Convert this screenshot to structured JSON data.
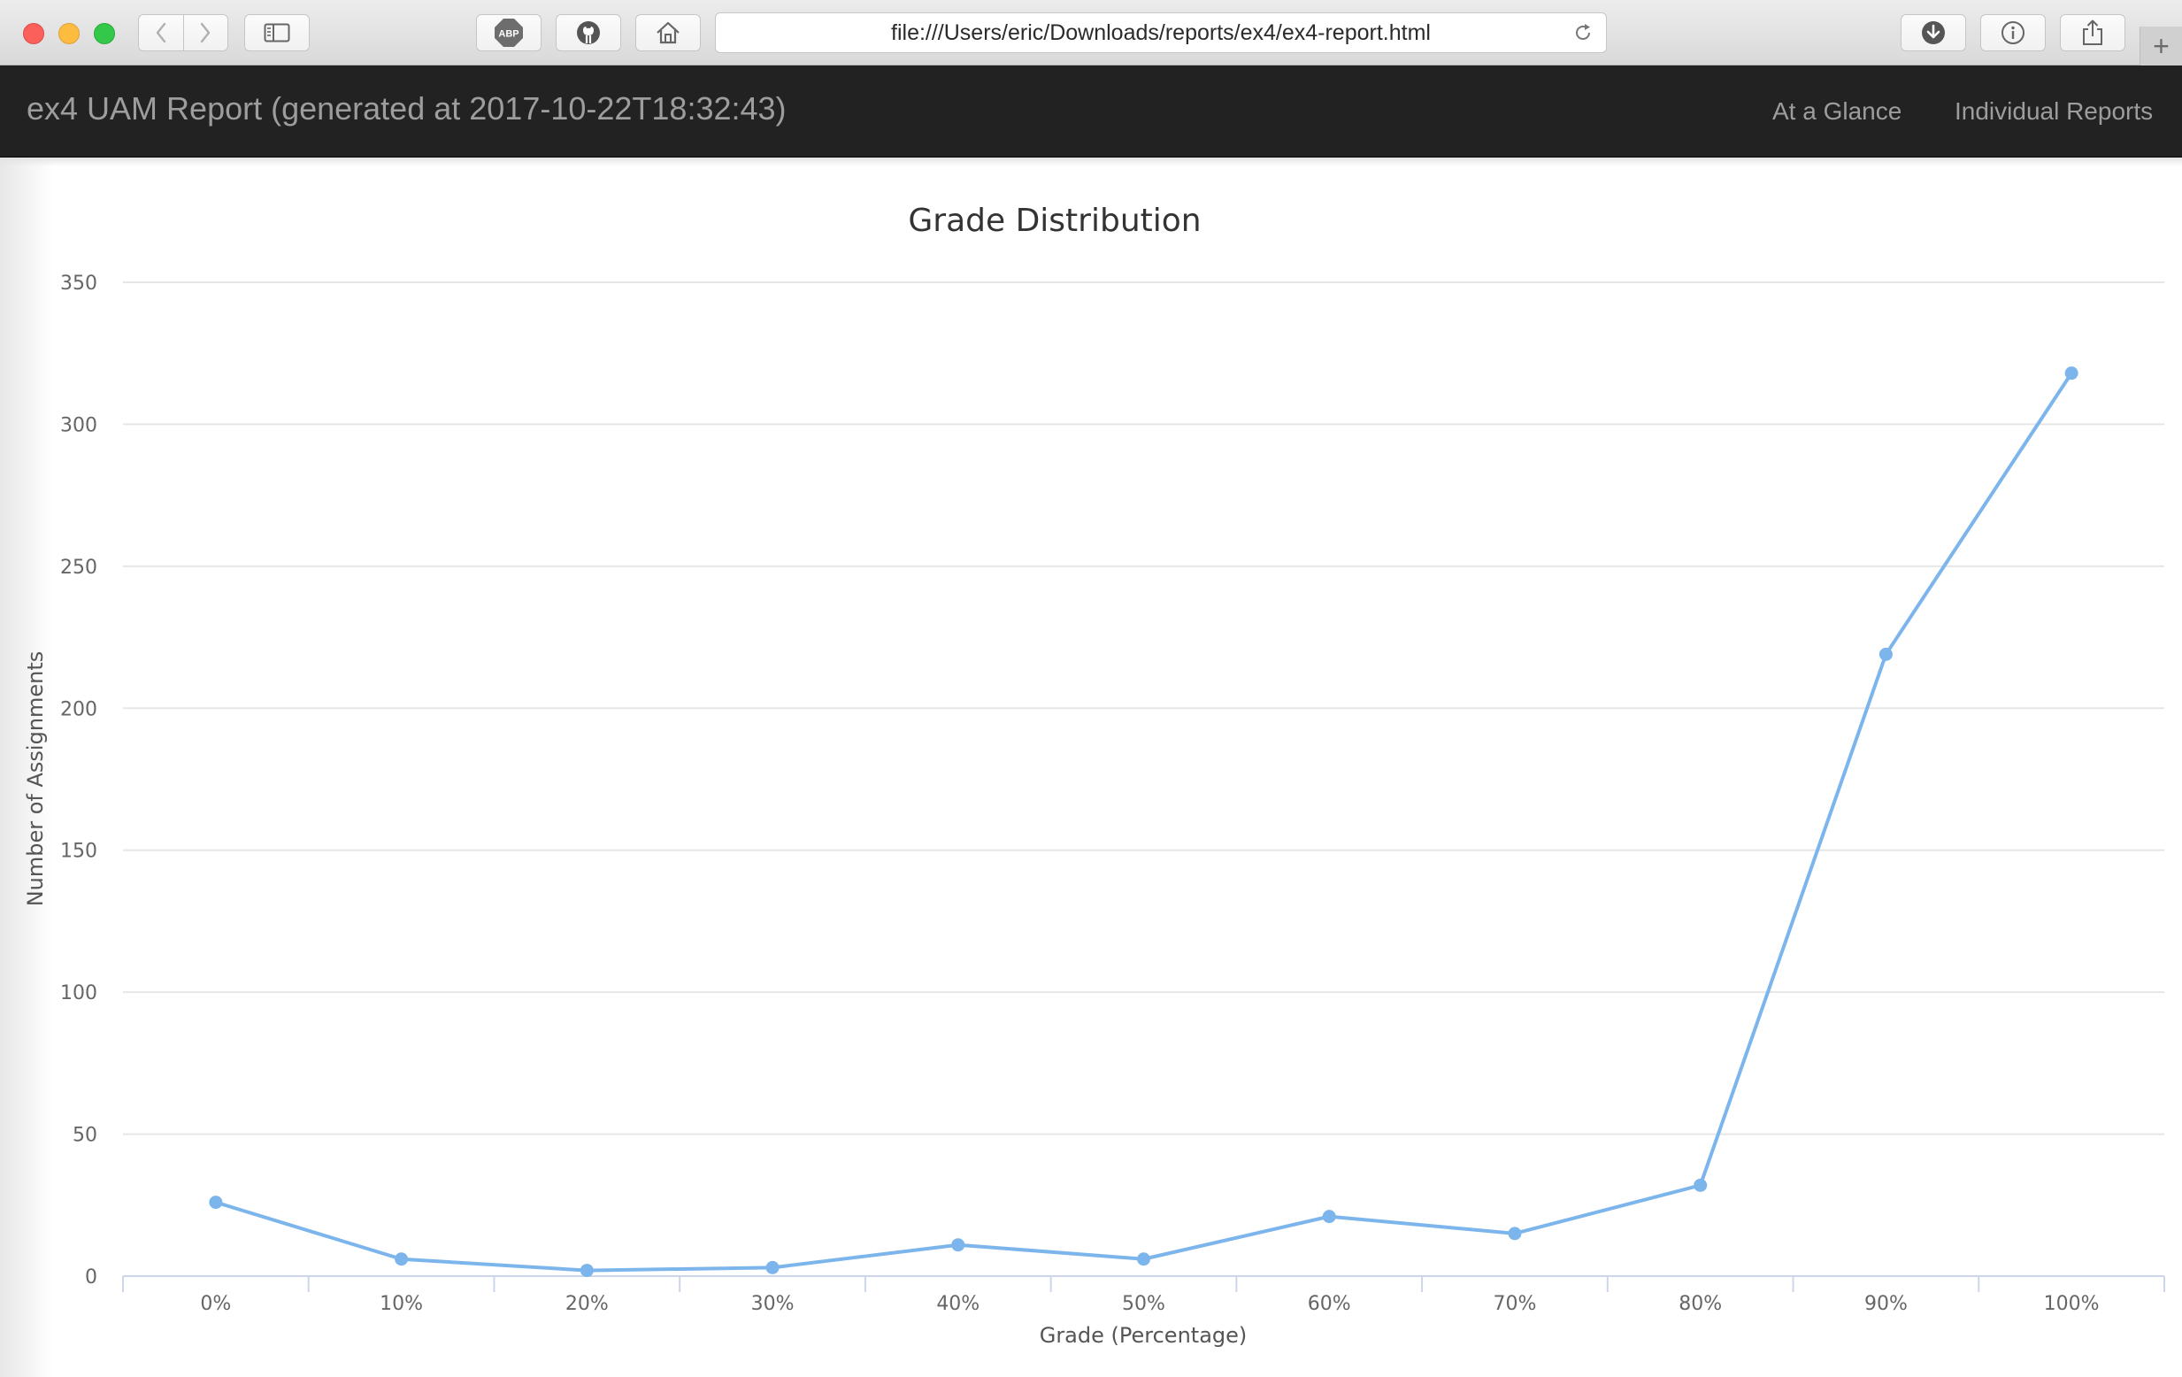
{
  "browser": {
    "url": "file:///Users/eric/Downloads/reports/ex4/ex4-report.html",
    "toolbar_icons": [
      "sidebar-icon",
      "adblock-icon",
      "github-icon",
      "home-icon",
      "download-icon",
      "info-icon",
      "share-icon"
    ],
    "adblock_label": "ABP",
    "new_tab_label": "+"
  },
  "navbar": {
    "brand": "ex4 UAM Report (generated at 2017-10-22T18:32:43)",
    "links": [
      "At a Glance",
      "Individual Reports"
    ],
    "background": "#222222",
    "text_color": "#9d9d9d"
  },
  "chart_data": {
    "type": "line",
    "title": "Grade Distribution",
    "xlabel": "Grade (Percentage)",
    "ylabel": "Number of Assignments",
    "categories": [
      "0%",
      "10%",
      "20%",
      "30%",
      "40%",
      "50%",
      "60%",
      "70%",
      "80%",
      "90%",
      "100%"
    ],
    "values": [
      26,
      6,
      2,
      3,
      11,
      6,
      21,
      15,
      32,
      219,
      318
    ],
    "ylim": [
      0,
      350
    ],
    "yticks": [
      0,
      50,
      100,
      150,
      200,
      250,
      300,
      350
    ],
    "grid": true,
    "legend": "none",
    "color": "#7cb5ec"
  }
}
